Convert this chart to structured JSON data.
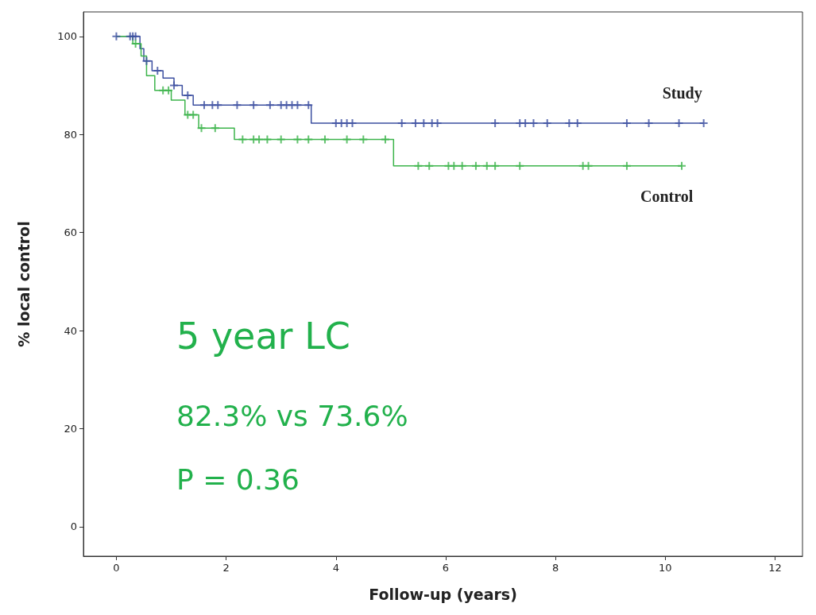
{
  "chart_data": {
    "type": "step",
    "xlabel": "Follow-up (years)",
    "ylabel": "% local control",
    "xlim": [
      -0.6,
      12.5
    ],
    "ylim": [
      -6,
      105
    ],
    "xticks": [
      0,
      2,
      4,
      6,
      8,
      10,
      12
    ],
    "yticks": [
      0,
      20,
      40,
      60,
      80,
      100
    ],
    "grid": false,
    "marker": "none",
    "line_style": "solid",
    "series": [
      {
        "name": "Study",
        "color": "#3c4fa0",
        "x": [
          0,
          0.43,
          0.5,
          0.65,
          0.85,
          1.05,
          1.2,
          1.4,
          3.55,
          10.7
        ],
        "values": [
          100,
          97.5,
          95,
          93,
          91.5,
          90,
          88,
          86,
          82.3,
          82.3
        ]
      },
      {
        "name": "Control",
        "color": "#3cb44b",
        "x": [
          0,
          0.3,
          0.45,
          0.55,
          0.7,
          1.0,
          1.25,
          1.5,
          2.15,
          5.05,
          10.3
        ],
        "values": [
          100,
          98.5,
          96,
          92,
          89,
          87,
          84,
          81.3,
          79,
          73.6,
          73.6
        ]
      },
      {
        "type": "scatter",
        "marker": "cross",
        "color": "#3c4fa0",
        "x": [
          0,
          0.25,
          0.3,
          0.35,
          0.55,
          0.75,
          1.05,
          1.3,
          1.6,
          1.75,
          1.85,
          2.2,
          2.5,
          2.8,
          3.0,
          3.1,
          3.2,
          3.3,
          3.5,
          4.0,
          4.1,
          4.2,
          4.3,
          5.2,
          5.45,
          5.6,
          5.75,
          5.85,
          6.9,
          7.35,
          7.45,
          7.6,
          7.85,
          8.25,
          8.4,
          9.3,
          9.7,
          10.25,
          10.7
        ],
        "values": [
          100,
          100,
          100,
          100,
          95,
          93,
          90,
          88,
          86,
          86,
          86,
          86,
          86,
          86,
          86,
          86,
          86,
          86,
          86,
          82.3,
          82.3,
          82.3,
          82.3,
          82.3,
          82.3,
          82.3,
          82.3,
          82.3,
          82.3,
          82.3,
          82.3,
          82.3,
          82.3,
          82.3,
          82.3,
          82.3,
          82.3,
          82.3,
          82.3
        ]
      },
      {
        "type": "scatter",
        "marker": "cross",
        "color": "#3cb44b",
        "x": [
          0.35,
          0.85,
          0.95,
          1.3,
          1.4,
          1.55,
          1.8,
          2.3,
          2.5,
          2.6,
          2.75,
          3.0,
          3.3,
          3.5,
          3.8,
          4.2,
          4.5,
          4.9,
          5.5,
          5.7,
          6.05,
          6.15,
          6.3,
          6.55,
          6.75,
          6.9,
          7.35,
          8.5,
          8.6,
          9.3,
          10.3
        ],
        "values": [
          98.5,
          89,
          89,
          84,
          84,
          81.3,
          81.3,
          79,
          79,
          79,
          79,
          79,
          79,
          79,
          79,
          79,
          79,
          79,
          73.6,
          73.6,
          73.6,
          73.6,
          73.6,
          73.6,
          73.6,
          73.6,
          73.6,
          73.6,
          73.6,
          73.6,
          73.6
        ]
      }
    ],
    "annotations": [
      "5 year LC",
      "82.3% vs 73.6%",
      "P = 0.36"
    ]
  }
}
